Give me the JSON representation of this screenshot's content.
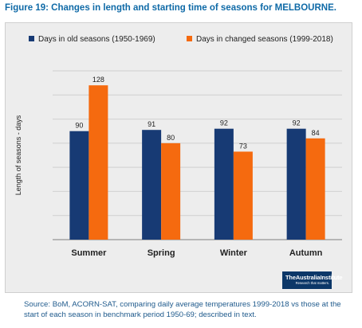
{
  "figure_title": "Figure 19: Changes in length and starting time of seasons for MELBOURNE.",
  "source_note": "Source: BoM, ACORN-SAT, comparing daily average temperatures 1999-2018 vs those at the start of each season in benchmark period 1950-69; described in text.",
  "logo": {
    "name": "TheAustraliaInstitute",
    "tagline": "Research that matters."
  },
  "colors": {
    "old": "#173a74",
    "new": "#f56a0f",
    "grid": "#d0d0d0",
    "axis": "#7f7f7f"
  },
  "chart_data": {
    "type": "bar",
    "categories": [
      "Summer",
      "Spring",
      "Winter",
      "Autumn"
    ],
    "series": [
      {
        "name": "Days in old seasons (1950-1969)",
        "values": [
          90,
          91,
          92,
          92
        ]
      },
      {
        "name": "Days in changed seasons (1999-2018)",
        "values": [
          128,
          80,
          73,
          84
        ]
      }
    ],
    "title": "",
    "xlabel": "",
    "ylabel": "Length of seasons - days",
    "ylim": [
      0,
      140
    ],
    "grid": true,
    "y_tick_labels_shown": false,
    "data_labels": true,
    "legend_position": "top"
  }
}
